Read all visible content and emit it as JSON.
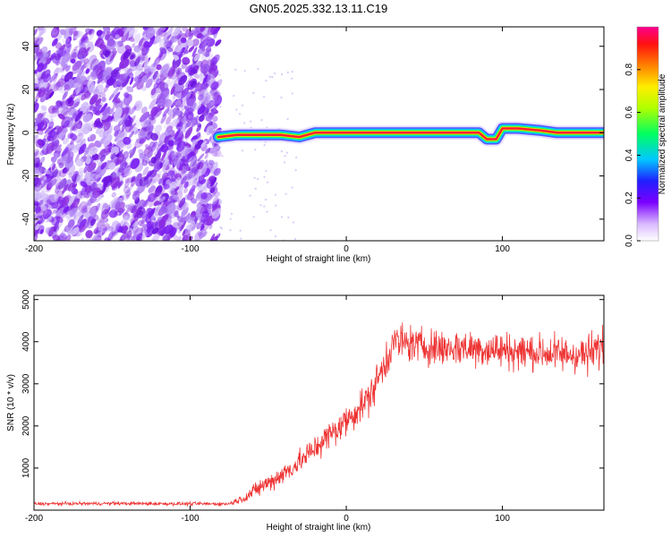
{
  "title": "GN05.2025.332.13.11.C19",
  "chart_data": [
    {
      "type": "heatmap",
      "xlabel": "Height of straight line (km)",
      "ylabel": "Frequency (Hz)",
      "xlim": [
        -200,
        165
      ],
      "ylim": [
        -50,
        49
      ],
      "x_ticks": [
        -200,
        -100,
        0,
        100
      ],
      "y_ticks": [
        -40,
        -20,
        0,
        20,
        40
      ],
      "noise_region_x": [
        -200,
        -82
      ],
      "trace": [
        {
          "x": -82,
          "y": -2
        },
        {
          "x": -70,
          "y": -1
        },
        {
          "x": -55,
          "y": -1
        },
        {
          "x": -42,
          "y": -1
        },
        {
          "x": -30,
          "y": -2
        },
        {
          "x": -20,
          "y": 0
        },
        {
          "x": 0,
          "y": 0
        },
        {
          "x": 40,
          "y": 0
        },
        {
          "x": 70,
          "y": 0
        },
        {
          "x": 85,
          "y": 0
        },
        {
          "x": 90,
          "y": -3
        },
        {
          "x": 96,
          "y": -3
        },
        {
          "x": 100,
          "y": 2
        },
        {
          "x": 110,
          "y": 2
        },
        {
          "x": 125,
          "y": 1
        },
        {
          "x": 135,
          "y": 0
        },
        {
          "x": 165,
          "y": 0
        }
      ],
      "colorbar": {
        "label": "Normalized spectral amplitude",
        "range": [
          0,
          1
        ],
        "ticks": [
          "0.0",
          "0.2",
          "0.4",
          "0.6",
          "0.8"
        ]
      }
    },
    {
      "type": "line",
      "xlabel": "Height of straight line (km)",
      "ylabel": "SNR (10 * v/v)",
      "xlim": [
        -200,
        165
      ],
      "ylim": [
        0,
        5100
      ],
      "x_ticks": [
        -200,
        -100,
        0,
        100
      ],
      "y_ticks": [
        1000,
        2000,
        3000,
        4000,
        5000
      ],
      "series": [
        {
          "name": "SNR",
          "color": "#ee3333",
          "x": [
            -200,
            -150,
            -100,
            -75,
            -65,
            -55,
            -45,
            -35,
            -25,
            -15,
            -5,
            5,
            15,
            25,
            30,
            40,
            50,
            60,
            80,
            100,
            120,
            140,
            155,
            165
          ],
          "y": [
            150,
            160,
            150,
            150,
            300,
            550,
            750,
            1000,
            1300,
            1650,
            1950,
            2300,
            2700,
            3500,
            4000,
            3950,
            3900,
            3850,
            3850,
            3800,
            3750,
            3700,
            3700,
            3900
          ],
          "spread": [
            60,
            60,
            60,
            60,
            180,
            300,
            350,
            400,
            450,
            500,
            550,
            550,
            600,
            700,
            700,
            650,
            650,
            650,
            650,
            650,
            650,
            650,
            700,
            700
          ]
        }
      ]
    }
  ]
}
